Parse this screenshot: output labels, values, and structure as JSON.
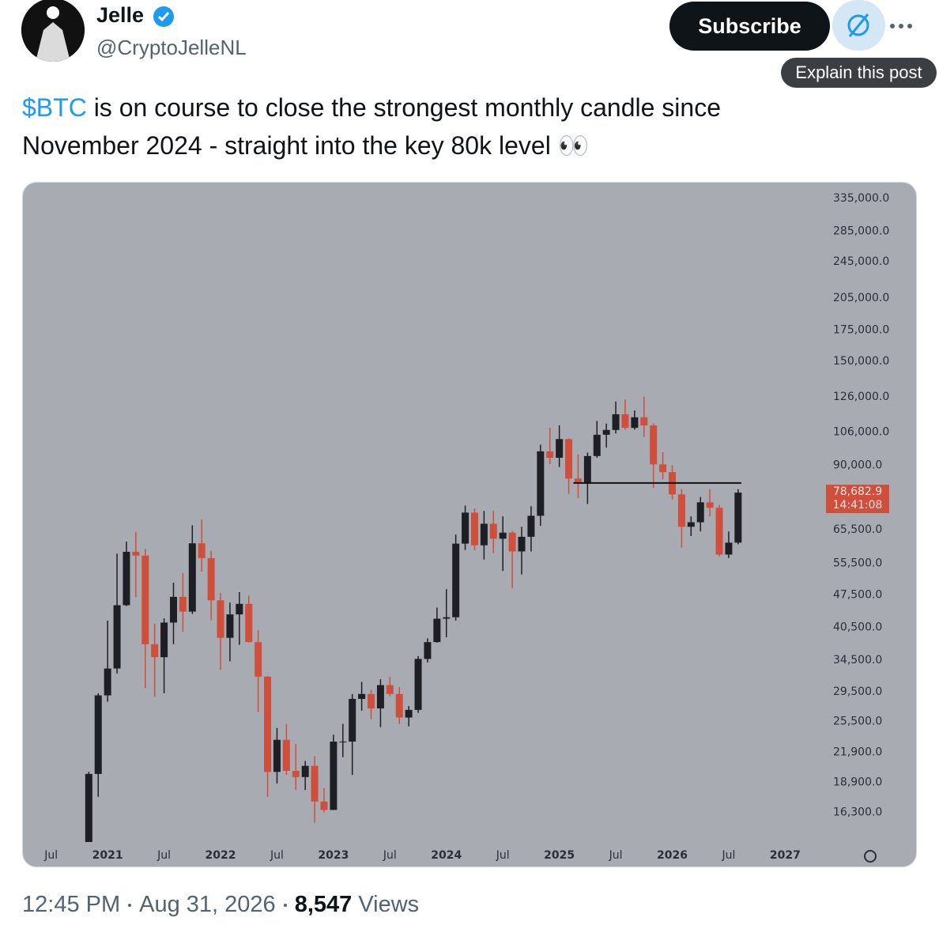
{
  "post": {
    "author": "Jelle",
    "handle": "@CryptoJelleNL",
    "subscribe": "Subscribe",
    "tooltip": "Explain this post",
    "cashtag": "$BTC",
    "text": "is on course to close the strongest monthly candle since November 2024 - straight into the key 80k level",
    "emoji": "👀",
    "time": "12:45 PM",
    "date": "Aug 31, 2026",
    "views": "8,547",
    "views_label": "Views"
  },
  "chart_data": {
    "type": "candlestick",
    "log_scale": true,
    "up_color": "#1e1f24",
    "down_color": "#cf4f3c",
    "background": "#a9abb3",
    "x": [
      "2020-11",
      "2020-12",
      "2021-01",
      "2021-02",
      "2021-03",
      "2021-04",
      "2021-05",
      "2021-06",
      "2021-07",
      "2021-08",
      "2021-09",
      "2021-10",
      "2021-11",
      "2021-12",
      "2022-01",
      "2022-02",
      "2022-03",
      "2022-04",
      "2022-05",
      "2022-06",
      "2022-07",
      "2022-08",
      "2022-09",
      "2022-10",
      "2022-11",
      "2022-12",
      "2023-01",
      "2023-02",
      "2023-03",
      "2023-04",
      "2023-05",
      "2023-06",
      "2023-07",
      "2023-08",
      "2023-09",
      "2023-10",
      "2023-11",
      "2023-12",
      "2024-01",
      "2024-02",
      "2024-03",
      "2024-04",
      "2024-05",
      "2024-06",
      "2024-07",
      "2024-08",
      "2024-09",
      "2024-10",
      "2024-11",
      "2024-12",
      "2025-01",
      "2025-02",
      "2025-03",
      "2025-04",
      "2025-05",
      "2025-06",
      "2025-07",
      "2025-08",
      "2025-09",
      "2025-10",
      "2025-11",
      "2025-12",
      "2026-01",
      "2026-02",
      "2026-03",
      "2026-04",
      "2026-05",
      "2026-06",
      "2026-07",
      "2026-08"
    ],
    "open": [
      13800,
      19700,
      29000,
      33100,
      45200,
      58800,
      57700,
      37300,
      35000,
      41500,
      47100,
      43800,
      61300,
      57000,
      46300,
      38500,
      43200,
      45500,
      37700,
      31800,
      19900,
      23300,
      20000,
      19400,
      20500,
      17200,
      16500,
      23100,
      23100,
      28500,
      29200,
      27200,
      30500,
      29200,
      26000,
      27000,
      34700,
      37700,
      42300,
      42600,
      61200,
      71300,
      60700,
      67500,
      62700,
      64600,
      58900,
      63300,
      70200,
      96400,
      93400,
      102400,
      84300,
      82500,
      94200,
      104600,
      107100,
      115700,
      108200,
      114000,
      109500,
      90400,
      87000,
      78000,
      66500,
      68000,
      75000,
      73000,
      58000,
      61500
    ],
    "high": [
      19900,
      29300,
      41900,
      58300,
      61800,
      64900,
      59600,
      41300,
      42400,
      50500,
      52900,
      67000,
      69000,
      59100,
      48000,
      45800,
      48200,
      47400,
      40000,
      31900,
      24700,
      25200,
      22800,
      21000,
      21500,
      18400,
      23900,
      25200,
      29200,
      31000,
      29800,
      31400,
      31800,
      30200,
      27500,
      35200,
      38400,
      44700,
      48900,
      64000,
      73800,
      72800,
      71900,
      72000,
      70000,
      65100,
      66500,
      73600,
      99600,
      108300,
      109600,
      102800,
      95000,
      95800,
      112000,
      110500,
      123200,
      124500,
      117900,
      126200,
      110600,
      96000,
      90000,
      80000,
      70000,
      77000,
      80000,
      74000,
      65000,
      80000
    ],
    "low": [
      13200,
      17600,
      28100,
      32300,
      45000,
      47000,
      30000,
      28800,
      29300,
      37300,
      39600,
      43300,
      53300,
      42000,
      32900,
      34300,
      37200,
      37600,
      26700,
      17600,
      18800,
      19600,
      18200,
      18200,
      15500,
      16300,
      16500,
      21400,
      19600,
      26900,
      25800,
      24800,
      28900,
      25200,
      24900,
      26600,
      34100,
      37600,
      38600,
      41900,
      59300,
      59200,
      56600,
      58400,
      53500,
      49100,
      52600,
      58900,
      66800,
      90500,
      89200,
      78200,
      76600,
      74400,
      93400,
      98200,
      105300,
      107300,
      107300,
      103500,
      80600,
      84000,
      76000,
      60000,
      63500,
      65000,
      70000,
      57500,
      57000,
      61000
    ],
    "close": [
      19700,
      29000,
      33100,
      45200,
      58800,
      57700,
      37300,
      35000,
      41500,
      47100,
      43800,
      61300,
      57000,
      46300,
      38500,
      43200,
      45500,
      37700,
      31800,
      19900,
      23300,
      20000,
      19400,
      20500,
      17200,
      16500,
      23100,
      23100,
      28500,
      29200,
      27200,
      30500,
      29200,
      26000,
      27000,
      34700,
      37700,
      42300,
      42600,
      61200,
      71300,
      60700,
      67500,
      62700,
      64600,
      58900,
      63300,
      70200,
      96400,
      93400,
      102400,
      84300,
      82500,
      94200,
      104600,
      107100,
      115700,
      108200,
      114000,
      109500,
      90400,
      87000,
      78000,
      66500,
      68000,
      75000,
      73000,
      58000,
      61500,
      78682.9
    ],
    "level": 82500,
    "price_label": {
      "value": 78682.9,
      "label": "78,682.9"
    },
    "countdown": "14:41:08",
    "xlim": [
      "2020-04",
      "2027-05"
    ],
    "xticks": [
      {
        "value": "2020-07",
        "label": "Jul"
      },
      {
        "value": "2021-01",
        "label": "2021"
      },
      {
        "value": "2021-07",
        "label": "Jul"
      },
      {
        "value": "2022-01",
        "label": "2022"
      },
      {
        "value": "2022-07",
        "label": "Jul"
      },
      {
        "value": "2023-01",
        "label": "2023"
      },
      {
        "value": "2023-07",
        "label": "Jul"
      },
      {
        "value": "2024-01",
        "label": "2024"
      },
      {
        "value": "2024-07",
        "label": "Jul"
      },
      {
        "value": "2025-01",
        "label": "2025"
      },
      {
        "value": "2025-07",
        "label": "Jul"
      },
      {
        "value": "2026-01",
        "label": "2026"
      },
      {
        "value": "2026-07",
        "label": "Jul"
      },
      {
        "value": "2027-01",
        "label": "2027"
      }
    ],
    "ylim": [
      14200,
      359000
    ],
    "yticks": [
      {
        "value": 335000,
        "label": "335,000.0"
      },
      {
        "value": 285000,
        "label": "285,000.0"
      },
      {
        "value": 245000,
        "label": "245,000.0"
      },
      {
        "value": 205000,
        "label": "205,000.0"
      },
      {
        "value": 175000,
        "label": "175,000.0"
      },
      {
        "value": 150000,
        "label": "150,000.0"
      },
      {
        "value": 126000,
        "label": "126,000.0"
      },
      {
        "value": 106000,
        "label": "106,000.0"
      },
      {
        "value": 90000,
        "label": "90,000.0"
      },
      {
        "value": 65500,
        "label": "65,500.0"
      },
      {
        "value": 55500,
        "label": "55,500.0"
      },
      {
        "value": 47500,
        "label": "47,500.0"
      },
      {
        "value": 40500,
        "label": "40,500.0"
      },
      {
        "value": 34500,
        "label": "34,500.0"
      },
      {
        "value": 29500,
        "label": "29,500.0"
      },
      {
        "value": 25500,
        "label": "25,500.0"
      },
      {
        "value": 21900,
        "label": "21,900.0"
      },
      {
        "value": 18900,
        "label": "18,900.0"
      },
      {
        "value": 16300,
        "label": "16,300.0"
      }
    ]
  }
}
